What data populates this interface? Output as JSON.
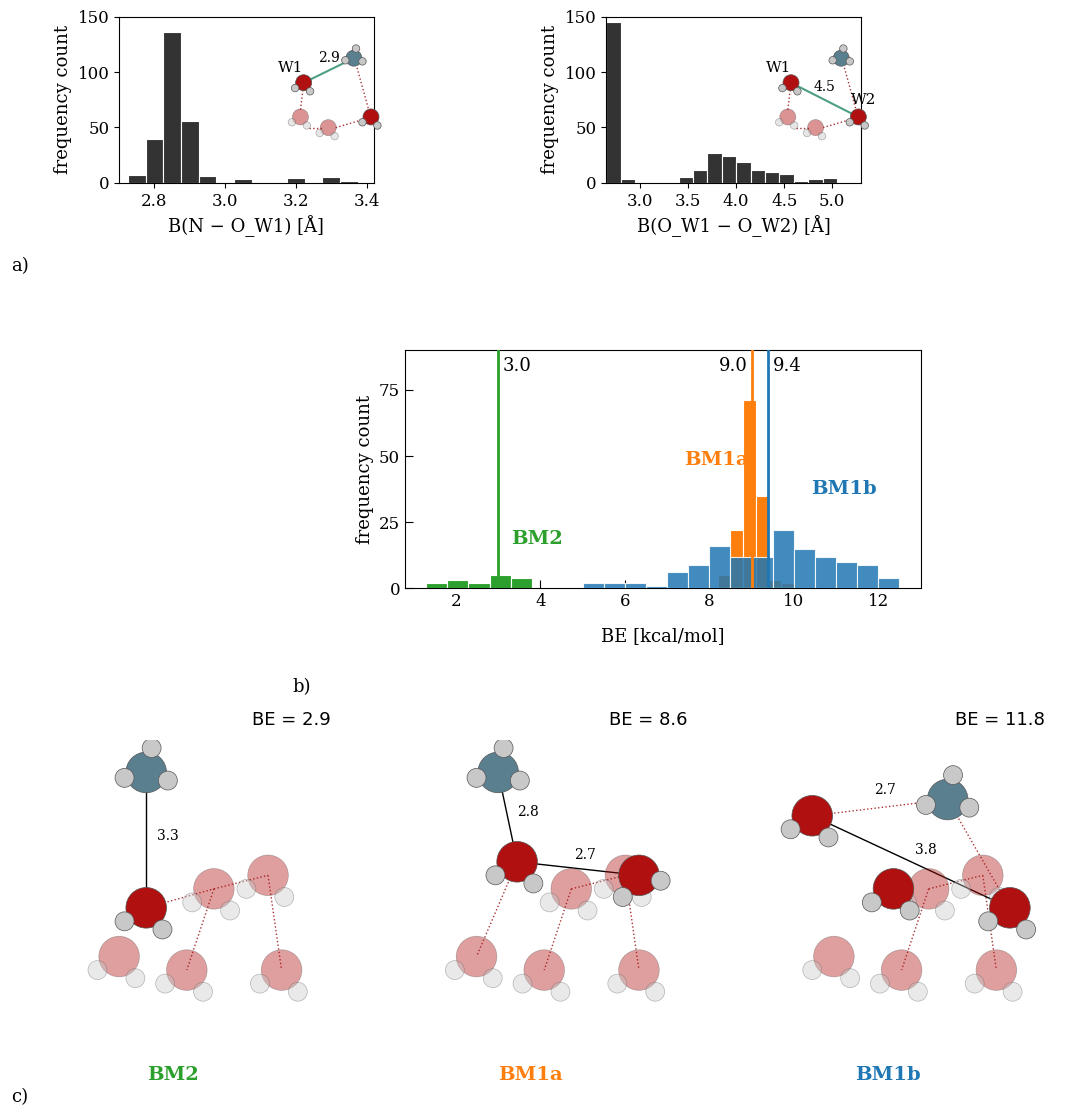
{
  "chart_data": [
    {
      "type": "histogram",
      "xlabel": "B(N − O_W1) [Å]",
      "ylabel": "frequency count",
      "bins": [
        2.725,
        2.775,
        2.825,
        2.875,
        2.925,
        2.975,
        3.025,
        3.075,
        3.125,
        3.175,
        3.225,
        3.275,
        3.325,
        3.375
      ],
      "counts": [
        7,
        40,
        136,
        56,
        6,
        0,
        3,
        1,
        1,
        4,
        0,
        5,
        2
      ],
      "color": "#333333",
      "xlim": [
        2.7,
        3.42
      ],
      "xticks": [
        2.8,
        3.0,
        3.2,
        3.4
      ],
      "ylim": [
        0,
        150
      ],
      "yticks": [
        0,
        50,
        100,
        150
      ]
    },
    {
      "type": "histogram",
      "xlabel": "B(O_W1 − O_W2) [Å]",
      "ylabel": "frequency count",
      "bins": [
        2.65,
        2.8,
        2.95,
        3.1,
        3.25,
        3.4,
        3.55,
        3.7,
        3.85,
        4.0,
        4.15,
        4.3,
        4.45,
        4.6,
        4.75,
        4.9,
        5.05,
        5.2
      ],
      "counts": [
        145,
        3,
        0,
        0,
        0,
        5,
        12,
        27,
        24,
        19,
        12,
        10,
        8,
        2,
        3,
        4,
        0
      ],
      "color": "#333333",
      "xlim": [
        2.65,
        5.3
      ],
      "xticks": [
        3.0,
        3.5,
        4.0,
        4.5,
        5.0
      ],
      "ylim": [
        0,
        150
      ],
      "yticks": [
        0,
        50,
        100,
        150
      ]
    },
    {
      "type": "histogram",
      "xlabel": "BE [kcal/mol]",
      "ylabel": "frequency count",
      "series": [
        {
          "name": "BM2",
          "color": "#2ca02c",
          "mean": 3.0,
          "bins": [
            1.3,
            1.8,
            2.3,
            2.8,
            3.3,
            3.8,
            4.3
          ],
          "counts": [
            2,
            3,
            2,
            5,
            4,
            0
          ]
        },
        {
          "name": "BM1a",
          "color": "#ff7f0e",
          "mean": 9.0,
          "bins": [
            8.2,
            8.5,
            8.8,
            9.1,
            9.4,
            9.7,
            10.0
          ],
          "counts": [
            5,
            22,
            71,
            35,
            3,
            2
          ]
        },
        {
          "name": "BM1b",
          "color": "#1f77b4",
          "mean": 9.4,
          "bins": [
            5.0,
            5.5,
            6.0,
            6.5,
            7.0,
            7.5,
            8.0,
            8.5,
            9.0,
            9.5,
            10.0,
            10.5,
            11.0,
            11.5,
            12.0,
            12.5
          ],
          "counts": [
            2,
            2,
            2,
            1,
            6,
            9,
            16,
            12,
            12,
            22,
            15,
            12,
            10,
            9,
            4
          ]
        }
      ],
      "xlim": [
        0.8,
        13.0
      ],
      "xticks": [
        2,
        4,
        6,
        8,
        10,
        12
      ],
      "ylim": [
        0,
        90
      ],
      "yticks": [
        0,
        25,
        50,
        75
      ]
    }
  ],
  "panel_labels": [
    "a)",
    "b)",
    "c)"
  ],
  "insets": [
    {
      "labels": [
        "W1"
      ],
      "distance": "2.9"
    },
    {
      "labels": [
        "W1",
        "W2"
      ],
      "distance": "4.5"
    }
  ],
  "structures": [
    {
      "name": "BM2",
      "color": "#2ca02c",
      "be_label": "BE = 2.9",
      "distances": [
        "3.3"
      ]
    },
    {
      "name": "BM1a",
      "color": "#ff7f0e",
      "be_label": "BE = 8.6",
      "distances": [
        "2.8",
        "2.7"
      ]
    },
    {
      "name": "BM1b",
      "color": "#1f77b4",
      "be_label": "BE = 11.8",
      "distances": [
        "2.7",
        "3.8"
      ]
    }
  ]
}
